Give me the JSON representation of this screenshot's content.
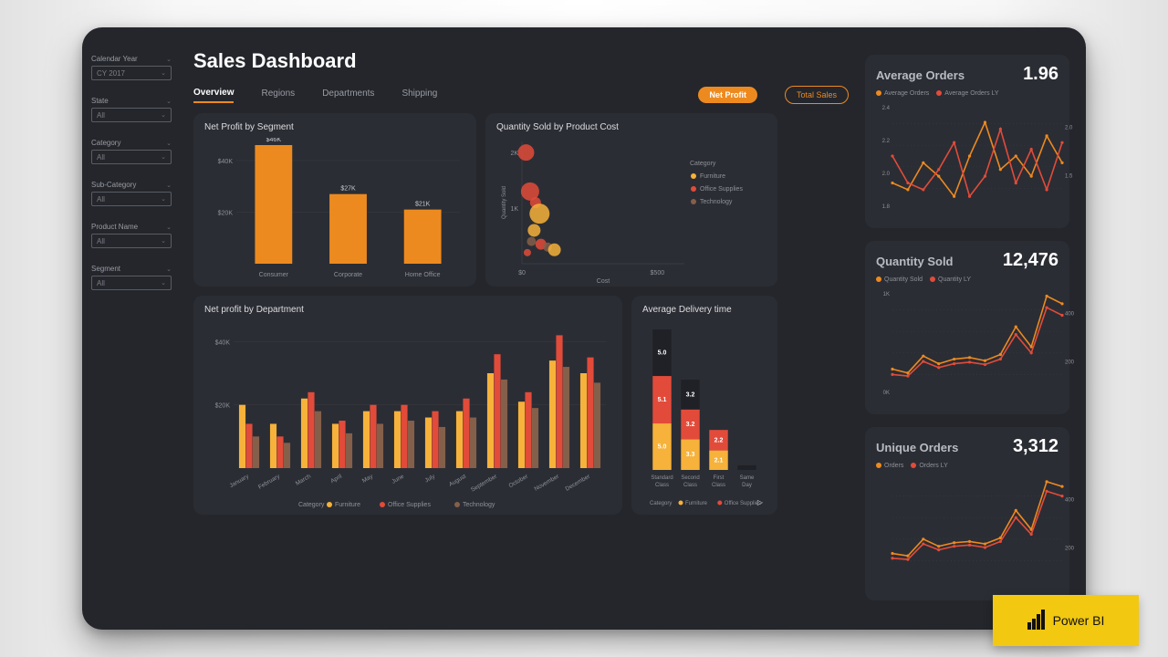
{
  "palette": {
    "bg": "#24262c",
    "card": "#2b2d34",
    "text": "#cfd0d4",
    "muted": "#9a9ca3",
    "accent": "#ed8a1f",
    "furniture": "#f6b23a",
    "office": "#e24b3a",
    "tech": "#845f4a",
    "grid": "#3a3c43",
    "white": "#ffffff"
  },
  "title": "Sales Dashboard",
  "tabs": [
    "Overview",
    "Regions",
    "Departments",
    "Shipping"
  ],
  "active_tab": 0,
  "toggles": {
    "primary": "Net Profit",
    "ghost": "Total Sales"
  },
  "sidebar": {
    "filters": [
      {
        "label": "Calendar Year",
        "value": "CY 2017"
      },
      {
        "label": "State",
        "value": "All"
      },
      {
        "label": "Category",
        "value": "All"
      },
      {
        "label": "Sub-Category",
        "value": "All"
      },
      {
        "label": "Product Name",
        "value": "All"
      },
      {
        "label": "Segment",
        "value": "All"
      }
    ]
  },
  "seg_chart": {
    "title": "Net Profit by Segment",
    "type": "bar",
    "categories": [
      "Consumer",
      "Corporate",
      "Home Office"
    ],
    "values": [
      46,
      27,
      21
    ],
    "value_labels": [
      "$46K",
      "$27K",
      "$21K"
    ],
    "ylim": [
      0,
      46
    ],
    "yticks": [
      20,
      40
    ],
    "ytick_labels": [
      "$20K",
      "$40K"
    ],
    "bar_color": "#ed8a1f",
    "label_fontsize": 7,
    "title_fontsize": 10,
    "bar_width": 0.5
  },
  "scatter_chart": {
    "title": "Quantity Sold by Product Cost",
    "type": "scatter",
    "xlabel": "Cost",
    "ylabel": "Quantity Sold",
    "xlim": [
      0,
      600
    ],
    "ylim": [
      0,
      2.2
    ],
    "xticks": [
      0,
      500
    ],
    "xtick_labels": [
      "$0",
      "$500"
    ],
    "yticks": [
      1,
      2
    ],
    "ytick_labels": [
      "1K",
      "2K"
    ],
    "legend_title": "Category",
    "legend": [
      {
        "label": "Furniture",
        "color": "#f6b23a"
      },
      {
        "label": "Office Supplies",
        "color": "#e24b3a"
      },
      {
        "label": "Technology",
        "color": "#845f4a"
      }
    ],
    "points": [
      {
        "x": 15,
        "y": 2.0,
        "r": 9,
        "c": "#e24b3a"
      },
      {
        "x": 30,
        "y": 1.3,
        "r": 10,
        "c": "#e24b3a"
      },
      {
        "x": 50,
        "y": 1.1,
        "r": 6,
        "c": "#e24b3a"
      },
      {
        "x": 65,
        "y": 0.9,
        "r": 11,
        "c": "#f6b23a"
      },
      {
        "x": 45,
        "y": 0.6,
        "r": 7,
        "c": "#f6b23a"
      },
      {
        "x": 35,
        "y": 0.4,
        "r": 5,
        "c": "#845f4a"
      },
      {
        "x": 70,
        "y": 0.35,
        "r": 6,
        "c": "#e24b3a"
      },
      {
        "x": 95,
        "y": 0.3,
        "r": 5,
        "c": "#845f4a"
      },
      {
        "x": 120,
        "y": 0.25,
        "r": 7,
        "c": "#f6b23a"
      },
      {
        "x": 20,
        "y": 0.2,
        "r": 4,
        "c": "#e24b3a"
      }
    ]
  },
  "dept_chart": {
    "title": "Net profit by Department",
    "type": "grouped-bar",
    "months": [
      "January",
      "February",
      "March",
      "April",
      "May",
      "June",
      "July",
      "August",
      "September",
      "October",
      "November",
      "December"
    ],
    "ylim": [
      0,
      45
    ],
    "yticks": [
      20,
      40
    ],
    "ytick_labels": [
      "$20K",
      "$40K"
    ],
    "series": [
      {
        "name": "Furniture",
        "color": "#f6b23a",
        "values": [
          20,
          14,
          22,
          14,
          18,
          18,
          16,
          18,
          30,
          21,
          34,
          30
        ]
      },
      {
        "name": "Office Supplies",
        "color": "#e24b3a",
        "values": [
          14,
          10,
          24,
          15,
          20,
          20,
          18,
          22,
          36,
          24,
          42,
          35
        ]
      },
      {
        "name": "Technology",
        "color": "#845f4a",
        "values": [
          10,
          8,
          18,
          11,
          14,
          15,
          13,
          16,
          28,
          19,
          32,
          27
        ]
      }
    ],
    "legend_label": "Category"
  },
  "delivery_chart": {
    "title": "Average Delivery time",
    "type": "stacked-bar",
    "categories": [
      "Standard Class",
      "Second Class",
      "First Class",
      "Same Day"
    ],
    "legend_label": "Category",
    "legend": [
      {
        "label": "Furniture",
        "color": "#f6b23a"
      },
      {
        "label": "Office Supplies",
        "color": "#e24b3a"
      }
    ],
    "stacks": [
      {
        "segments": [
          {
            "v": 5.0,
            "c": "#f6b23a",
            "t": "5.0"
          },
          {
            "v": 5.1,
            "c": "#e24b3a",
            "t": "5.1"
          },
          {
            "v": 5.0,
            "c": "#1f2127",
            "t": "5.0",
            "tc": "#fff"
          }
        ]
      },
      {
        "segments": [
          {
            "v": 3.3,
            "c": "#f6b23a",
            "t": "3.3"
          },
          {
            "v": 3.2,
            "c": "#e24b3a",
            "t": "3.2"
          },
          {
            "v": 3.2,
            "c": "#1f2127",
            "t": "3.2",
            "tc": "#fff"
          }
        ]
      },
      {
        "segments": [
          {
            "v": 2.1,
            "c": "#f6b23a",
            "t": "2.1"
          },
          {
            "v": 2.2,
            "c": "#e24b3a",
            "t": "2.2"
          }
        ]
      },
      {
        "segments": [
          {
            "v": 0.5,
            "c": "#1f2127",
            "t": "",
            "tc": "#fff"
          }
        ]
      }
    ],
    "ymax": 15.5
  },
  "kpis": [
    {
      "title": "Average Orders",
      "value": "1.96",
      "legend": [
        {
          "label": "Average Orders",
          "color": "#ed8a1f"
        },
        {
          "label": "Average Orders LY",
          "color": "#e24b3a"
        }
      ],
      "yticks_l": [
        "2.4",
        "2.2",
        "2.0",
        "1.8"
      ],
      "yticks_r": [
        "2.0",
        "1.5"
      ],
      "series": [
        {
          "color": "#ed8a1f",
          "pts": [
            1.9,
            1.85,
            2.05,
            1.95,
            1.8,
            2.1,
            2.35,
            2.0,
            2.1,
            1.95,
            2.25,
            2.05
          ]
        },
        {
          "color": "#e24b3a",
          "pts": [
            2.1,
            1.9,
            1.85,
            2.0,
            2.2,
            1.8,
            1.95,
            2.3,
            1.9,
            2.15,
            1.85,
            2.2
          ]
        }
      ],
      "ylim": [
        1.7,
        2.5
      ]
    },
    {
      "title": "Quantity Sold",
      "value": "12,476",
      "legend": [
        {
          "label": "Quantity Sold",
          "color": "#ed8a1f"
        },
        {
          "label": "Quantity LY",
          "color": "#e24b3a"
        }
      ],
      "yticks_l": [
        "1K",
        "0K"
      ],
      "yticks_r": [
        "400",
        "200"
      ],
      "series": [
        {
          "color": "#ed8a1f",
          "pts": [
            350,
            300,
            520,
            420,
            480,
            500,
            460,
            540,
            900,
            640,
            1300,
            1200
          ]
        },
        {
          "color": "#e24b3a",
          "pts": [
            280,
            260,
            450,
            370,
            420,
            440,
            410,
            480,
            800,
            560,
            1150,
            1050
          ]
        }
      ],
      "ylim": [
        0,
        1400
      ]
    },
    {
      "title": "Unique Orders",
      "value": "3,312",
      "legend": [
        {
          "label": "Orders",
          "color": "#ed8a1f"
        },
        {
          "label": "Orders LY",
          "color": "#e24b3a"
        }
      ],
      "yticks_l": [],
      "yticks_r": [
        "400",
        "200"
      ],
      "series": [
        {
          "color": "#ed8a1f",
          "pts": [
            120,
            110,
            180,
            150,
            165,
            170,
            160,
            185,
            300,
            220,
            420,
            400
          ]
        },
        {
          "color": "#e24b3a",
          "pts": [
            100,
            95,
            160,
            135,
            150,
            155,
            145,
            170,
            270,
            200,
            380,
            360
          ]
        }
      ],
      "ylim": [
        0,
        450
      ]
    }
  ],
  "powerbi_label": "Power BI"
}
